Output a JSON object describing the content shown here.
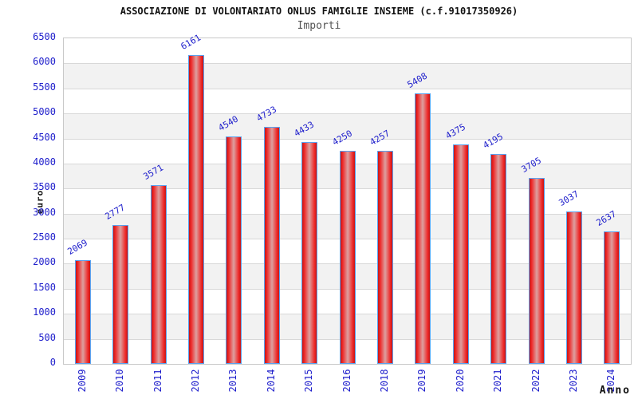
{
  "chart_data": {
    "type": "bar",
    "title": "ASSOCIAZIONE DI VOLONTARIATO ONLUS FAMIGLIE INSIEME (c.f.91017350926)",
    "subtitle": "Importi",
    "xlabel": "Anno",
    "ylabel": "euro",
    "categories": [
      "2009",
      "2010",
      "2011",
      "2012",
      "2013",
      "2014",
      "2015",
      "2016",
      "2018",
      "2019",
      "2020",
      "2021",
      "2022",
      "2023",
      "2024"
    ],
    "values": [
      2069,
      2777,
      3571,
      6161,
      4540,
      4733,
      4433,
      4250,
      4257,
      5408,
      4375,
      4195,
      3705,
      3037,
      2637
    ],
    "ylim": [
      0,
      6500
    ],
    "ytick_step": 500,
    "grid": "horizontal-bands-alternating",
    "legend": "none",
    "value_labels_rotation_deg": -30,
    "x_tick_rotation_deg": -90
  },
  "style": {
    "label_blue": "#2020cc",
    "bar_edge_dark": "#c21717",
    "bar_red": "#ee2626",
    "bar_center_pale": "#dda0a0",
    "bar_border": "#5aa2f0",
    "band_gray": "#f2f2f2",
    "grid_line": "#d8d8d8",
    "plot_border": "#c8c8c8",
    "title_color": "#111111",
    "subtitle_color": "#555555"
  }
}
